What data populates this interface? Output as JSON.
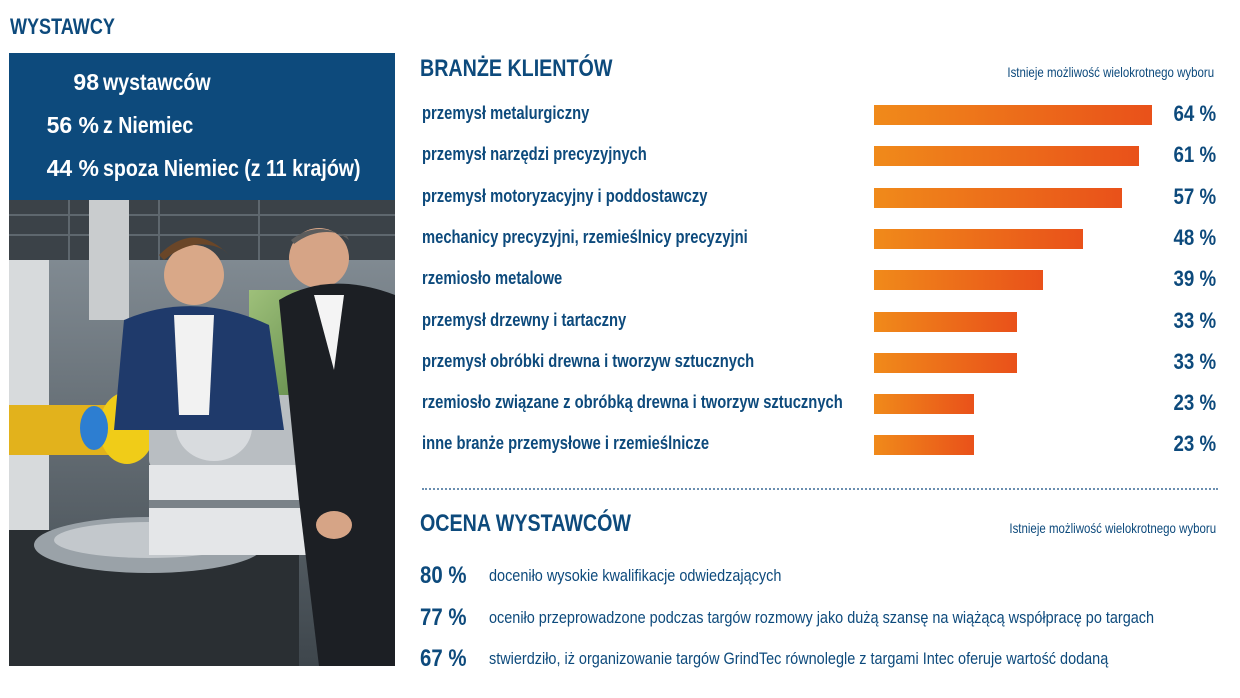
{
  "exhibitors": {
    "title": "WYSTAWCY",
    "stats": [
      {
        "value": "98",
        "label": "wystawców"
      },
      {
        "value": "56 %",
        "label": "z Niemiec"
      },
      {
        "value": "44 %",
        "label": "spoza Niemiec (z 11 krajów)"
      }
    ]
  },
  "chart_data": {
    "type": "bar",
    "orientation": "horizontal",
    "title": "BRANŻE KLIENTÓW",
    "note": "Istnieje możliwość wielokrotnego wyboru",
    "categories": [
      "przemysł metalurgiczny",
      "przemysł narzędzi precyzyjnych",
      "przemysł motoryzacyjny i poddostawczy",
      "mechanicy precyzyjni, rzemieślnicy precyzyjni",
      "rzemiosło metalowe",
      "przemysł drzewny i tartaczny",
      "przemysł obróbki drewna i tworzyw sztucznych",
      "rzemiosło związane z obróbką drewna i tworzyw sztucznych",
      "inne branże przemysłowe i rzemieślnicze"
    ],
    "values": [
      64,
      61,
      57,
      48,
      39,
      33,
      33,
      23,
      23
    ],
    "value_labels": [
      "64 %",
      "61 %",
      "57 %",
      "48 %",
      "39 %",
      "33 %",
      "33 %",
      "23 %",
      "23 %"
    ],
    "unit": "%",
    "colors": {
      "bar_start": "#f08a1a",
      "bar_end": "#e9511a"
    }
  },
  "ratings": {
    "title": "OCENA WYSTAWCÓW",
    "note": "Istnieje możliwość wielokrotnego wyboru",
    "items": [
      {
        "pct": "80 %",
        "text": "doceniło wysokie kwalifikacje odwiedzających"
      },
      {
        "pct": "77 %",
        "text": "oceniło przeprowadzone podczas targów rozmowy jako dużą szansę na wiążącą współpracę po targach"
      },
      {
        "pct": "67 %",
        "text": "stwierdziło, iż organizowanie targów GrindTec równolegle z targami Intec oferuje wartość dodaną"
      }
    ]
  },
  "colors": {
    "brand_blue": "#0d4a7c",
    "accent_orange": "#ee7a1a"
  }
}
